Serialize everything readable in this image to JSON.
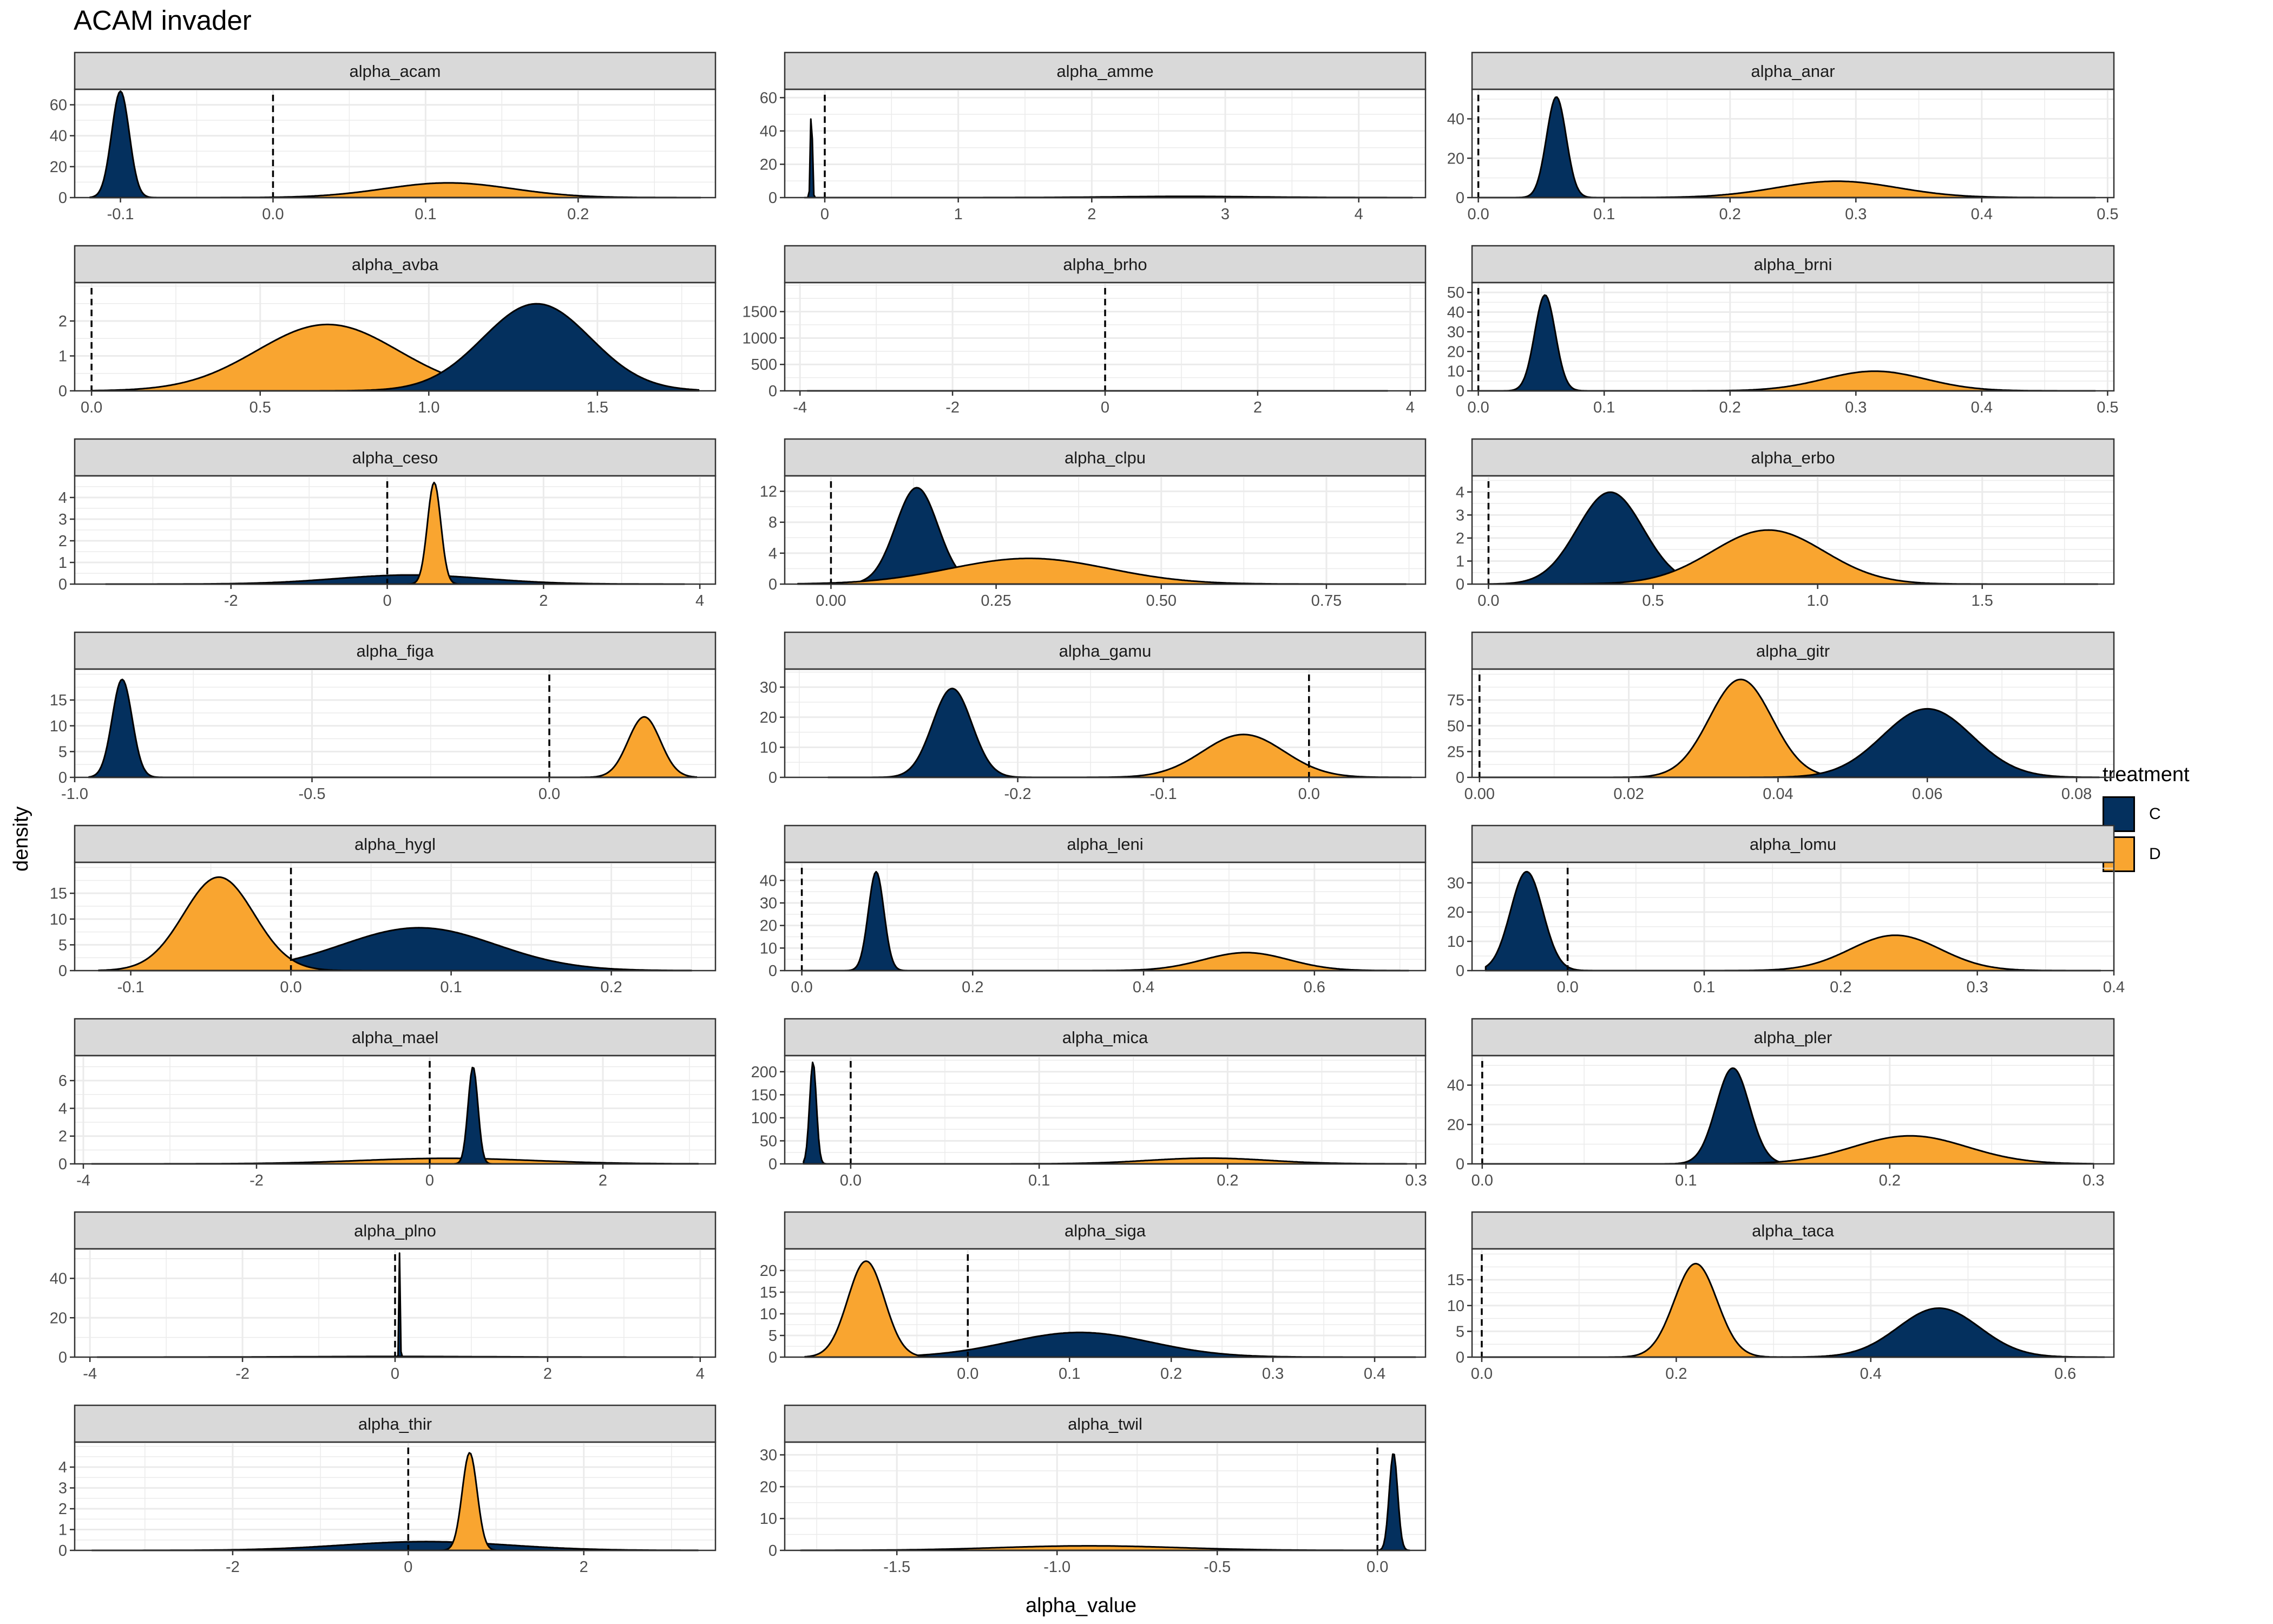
{
  "title": "ACAM invader",
  "xlabel": "alpha_value",
  "ylabel": "density",
  "legend": {
    "title": "treatment",
    "items": [
      {
        "label": "C",
        "color": "#04305e"
      },
      {
        "label": "D",
        "color": "#f9a530"
      }
    ]
  },
  "colors": {
    "C": "#04305e",
    "D": "#f9a530",
    "strip": "#d9d9d9",
    "grid": "#ebebeb"
  },
  "chart_data": [
    {
      "type": "area",
      "title": "alpha_acam",
      "xlim": [
        -0.13,
        0.29
      ],
      "ylim": [
        0,
        70
      ],
      "xticks": [
        -0.1,
        0.0,
        0.1,
        0.2
      ],
      "xtick_labels": [
        "-0.1",
        "0.0",
        "0.1",
        "0.2"
      ],
      "yticks": [
        0,
        20,
        40,
        60
      ],
      "vline": 0,
      "series": [
        {
          "treatment": "C",
          "mean": -0.1,
          "sd": 0.0058,
          "range": [
            -0.12,
            0.28
          ]
        },
        {
          "treatment": "D",
          "mean": 0.115,
          "sd": 0.042,
          "range": [
            -0.12,
            0.28
          ]
        }
      ]
    },
    {
      "type": "area",
      "title": "alpha_amme",
      "xlim": [
        -0.3,
        4.5
      ],
      "ylim": [
        0,
        65
      ],
      "xticks": [
        0,
        1,
        2,
        3,
        4
      ],
      "xtick_labels": [
        "0",
        "1",
        "2",
        "3",
        "4"
      ],
      "yticks": [
        0,
        20,
        40,
        60
      ],
      "vline": 0,
      "series": [
        {
          "treatment": "C",
          "mean": -0.1,
          "sd": 0.0068,
          "range": [
            -0.15,
            4.4
          ]
        },
        {
          "treatment": "D",
          "mean": 2.7,
          "sd": 0.55,
          "range": [
            -0.15,
            4.4
          ]
        }
      ]
    },
    {
      "type": "area",
      "title": "alpha_anar",
      "xlim": [
        -0.005,
        0.505
      ],
      "ylim": [
        0,
        55
      ],
      "xticks": [
        0.0,
        0.1,
        0.2,
        0.3,
        0.4,
        0.5
      ],
      "xtick_labels": [
        "0.0",
        "0.1",
        "0.2",
        "0.3",
        "0.4",
        "0.5"
      ],
      "yticks": [
        0,
        20,
        40
      ],
      "vline": 0,
      "series": [
        {
          "treatment": "C",
          "mean": 0.062,
          "sd": 0.0078,
          "range": [
            0.0,
            0.49
          ]
        },
        {
          "treatment": "D",
          "mean": 0.285,
          "sd": 0.048,
          "range": [
            0.0,
            0.49
          ]
        }
      ]
    },
    {
      "type": "area",
      "title": "alpha_avba",
      "xlim": [
        -0.05,
        1.85
      ],
      "ylim": [
        0,
        3.1
      ],
      "xticks": [
        0.0,
        0.5,
        1.0,
        1.5
      ],
      "xtick_labels": [
        "0.0",
        "0.5",
        "1.0",
        "1.5"
      ],
      "yticks": [
        0,
        1,
        2
      ],
      "vline": 0,
      "series": [
        {
          "treatment": "D",
          "mean": 0.7,
          "sd": 0.21,
          "range": [
            0.0,
            1.8
          ]
        },
        {
          "treatment": "C",
          "mean": 1.32,
          "sd": 0.16,
          "range": [
            0.0,
            1.8
          ]
        }
      ]
    },
    {
      "type": "area",
      "title": "alpha_brho",
      "xlim": [
        -4.2,
        4.2
      ],
      "ylim": [
        0,
        2050
      ],
      "xticks": [
        -4,
        -2,
        0,
        2,
        4
      ],
      "xtick_labels": [
        "-4",
        "-2",
        "0",
        "2",
        "4"
      ],
      "yticks": [
        0,
        500,
        1000,
        1500
      ],
      "vline": 0,
      "series": [
        {
          "treatment": "C",
          "mean": 0.0,
          "sd": 0.0002,
          "range": [
            -3.9,
            3.7
          ]
        },
        {
          "treatment": "D",
          "mean": 0.0,
          "sd": 1.2,
          "range": [
            -3.9,
            3.7
          ]
        }
      ]
    },
    {
      "type": "area",
      "title": "alpha_brni",
      "xlim": [
        -0.005,
        0.505
      ],
      "ylim": [
        0,
        55
      ],
      "xticks": [
        0.0,
        0.1,
        0.2,
        0.3,
        0.4,
        0.5
      ],
      "xtick_labels": [
        "0.0",
        "0.1",
        "0.2",
        "0.3",
        "0.4",
        "0.5"
      ],
      "yticks": [
        0,
        10,
        20,
        30,
        40,
        50
      ],
      "vline": 0,
      "series": [
        {
          "treatment": "C",
          "mean": 0.053,
          "sd": 0.0082,
          "range": [
            0.0,
            0.49
          ]
        },
        {
          "treatment": "D",
          "mean": 0.315,
          "sd": 0.04,
          "range": [
            0.0,
            0.49
          ]
        }
      ]
    },
    {
      "type": "area",
      "title": "alpha_ceso",
      "xlim": [
        -4.0,
        4.2
      ],
      "ylim": [
        0,
        5
      ],
      "xticks": [
        -2,
        0,
        2,
        4
      ],
      "xtick_labels": [
        "-2",
        "0",
        "2",
        "4"
      ],
      "yticks": [
        0,
        1,
        2,
        3,
        4
      ],
      "vline": 0,
      "series": [
        {
          "treatment": "C",
          "mean": 0.3,
          "sd": 0.95,
          "range": [
            -3.6,
            3.8
          ]
        },
        {
          "treatment": "D",
          "mean": 0.6,
          "sd": 0.085,
          "range": [
            -3.6,
            3.8
          ]
        }
      ]
    },
    {
      "type": "area",
      "title": "alpha_clpu",
      "xlim": [
        -0.07,
        0.9
      ],
      "ylim": [
        0,
        14
      ],
      "xticks": [
        0.0,
        0.25,
        0.5,
        0.75
      ],
      "xtick_labels": [
        "0.00",
        "0.25",
        "0.50",
        "0.75"
      ],
      "yticks": [
        0,
        4,
        8,
        12
      ],
      "vline": 0,
      "series": [
        {
          "treatment": "C",
          "mean": 0.13,
          "sd": 0.032,
          "range": [
            -0.05,
            0.87
          ]
        },
        {
          "treatment": "D",
          "mean": 0.3,
          "sd": 0.12,
          "range": [
            -0.05,
            0.87
          ]
        }
      ]
    },
    {
      "type": "area",
      "title": "alpha_erbo",
      "xlim": [
        -0.05,
        1.9
      ],
      "ylim": [
        0,
        4.7
      ],
      "xticks": [
        0.0,
        0.5,
        1.0,
        1.5
      ],
      "xtick_labels": [
        "0.0",
        "0.5",
        "1.0",
        "1.5"
      ],
      "yticks": [
        0,
        1,
        2,
        3,
        4
      ],
      "vline": 0,
      "series": [
        {
          "treatment": "C",
          "mean": 0.37,
          "sd": 0.1,
          "range": [
            0.0,
            1.85
          ]
        },
        {
          "treatment": "D",
          "mean": 0.85,
          "sd": 0.17,
          "range": [
            0.0,
            1.85
          ]
        }
      ]
    },
    {
      "type": "area",
      "title": "alpha_figa",
      "xlim": [
        -1.0,
        0.35
      ],
      "ylim": [
        0,
        21
      ],
      "xticks": [
        -1.0,
        -0.5,
        0.0
      ],
      "xtick_labels": [
        "-1.0",
        "-0.5",
        "0.0"
      ],
      "yticks": [
        0,
        5,
        10,
        15
      ],
      "vline": 0,
      "series": [
        {
          "treatment": "C",
          "mean": -0.9,
          "sd": 0.021,
          "range": [
            -0.97,
            0.31
          ]
        },
        {
          "treatment": "D",
          "mean": 0.2,
          "sd": 0.034,
          "range": [
            -0.97,
            0.31
          ]
        }
      ]
    },
    {
      "type": "area",
      "title": "alpha_gamu",
      "xlim": [
        -0.36,
        0.08
      ],
      "ylim": [
        0,
        36
      ],
      "xticks": [
        -0.2,
        -0.1,
        0.0
      ],
      "xtick_labels": [
        "-0.2",
        "-0.1",
        "0.0"
      ],
      "yticks": [
        0,
        10,
        20,
        30
      ],
      "vline": 0,
      "series": [
        {
          "treatment": "C",
          "mean": -0.245,
          "sd": 0.0135,
          "range": [
            -0.33,
            0.07
          ]
        },
        {
          "treatment": "D",
          "mean": -0.045,
          "sd": 0.028,
          "range": [
            -0.33,
            0.07
          ]
        }
      ]
    },
    {
      "type": "area",
      "title": "alpha_gitr",
      "xlim": [
        -0.001,
        0.085
      ],
      "ylim": [
        0,
        105
      ],
      "xticks": [
        0.0,
        0.02,
        0.04,
        0.06,
        0.08
      ],
      "xtick_labels": [
        "0.00",
        "0.02",
        "0.04",
        "0.06",
        "0.08"
      ],
      "yticks": [
        0,
        25,
        50,
        75
      ],
      "vline": 0,
      "series": [
        {
          "treatment": "D",
          "mean": 0.035,
          "sd": 0.0042,
          "range": [
            0.0,
            0.083
          ]
        },
        {
          "treatment": "C",
          "mean": 0.06,
          "sd": 0.006,
          "range": [
            0.0,
            0.083
          ]
        }
      ]
    },
    {
      "type": "area",
      "title": "alpha_hygl",
      "xlim": [
        -0.135,
        0.265
      ],
      "ylim": [
        0,
        21
      ],
      "xticks": [
        -0.1,
        0.0,
        0.1,
        0.2
      ],
      "xtick_labels": [
        "-0.1",
        "0.0",
        "0.1",
        "0.2"
      ],
      "yticks": [
        0,
        5,
        10,
        15
      ],
      "vline": 0,
      "series": [
        {
          "treatment": "C",
          "mean": 0.08,
          "sd": 0.048,
          "range": [
            -0.12,
            0.25
          ]
        },
        {
          "treatment": "D",
          "mean": -0.045,
          "sd": 0.022,
          "range": [
            -0.12,
            0.25
          ]
        }
      ]
    },
    {
      "type": "area",
      "title": "alpha_leni",
      "xlim": [
        -0.02,
        0.73
      ],
      "ylim": [
        0,
        48
      ],
      "xticks": [
        0.0,
        0.2,
        0.4,
        0.6
      ],
      "xtick_labels": [
        "0.0",
        "0.2",
        "0.4",
        "0.6"
      ],
      "yticks": [
        0,
        10,
        20,
        30,
        40
      ],
      "vline": 0,
      "series": [
        {
          "treatment": "C",
          "mean": 0.087,
          "sd": 0.0091,
          "range": [
            0.0,
            0.71
          ]
        },
        {
          "treatment": "D",
          "mean": 0.52,
          "sd": 0.05,
          "range": [
            0.0,
            0.71
          ]
        }
      ]
    },
    {
      "type": "area",
      "title": "alpha_lomu",
      "xlim": [
        -0.07,
        0.4
      ],
      "ylim": [
        0,
        37
      ],
      "xticks": [
        0.0,
        0.1,
        0.2,
        0.3,
        0.4
      ],
      "xtick_labels": [
        "0.0",
        "0.1",
        "0.2",
        "0.3",
        "0.4"
      ],
      "yticks": [
        0,
        10,
        20,
        30
      ],
      "vline": 0,
      "series": [
        {
          "treatment": "C",
          "mean": -0.03,
          "sd": 0.0118,
          "range": [
            -0.06,
            0.39
          ]
        },
        {
          "treatment": "D",
          "mean": 0.24,
          "sd": 0.033,
          "range": [
            -0.06,
            0.39
          ]
        }
      ]
    },
    {
      "type": "area",
      "title": "alpha_mael",
      "xlim": [
        -4.1,
        3.3
      ],
      "ylim": [
        0,
        7.8
      ],
      "xticks": [
        -4,
        -2,
        0,
        2
      ],
      "xtick_labels": [
        "-4",
        "-2",
        "0",
        "2"
      ],
      "yticks": [
        0,
        2,
        4,
        6
      ],
      "vline": 0,
      "series": [
        {
          "treatment": "D",
          "mean": 0.2,
          "sd": 1.0,
          "range": [
            -3.9,
            3.1
          ]
        },
        {
          "treatment": "C",
          "mean": 0.5,
          "sd": 0.057,
          "range": [
            -3.9,
            3.1
          ]
        }
      ]
    },
    {
      "type": "area",
      "title": "alpha_mica",
      "xlim": [
        -0.035,
        0.305
      ],
      "ylim": [
        0,
        235
      ],
      "xticks": [
        0.0,
        0.1,
        0.2,
        0.3
      ],
      "xtick_labels": [
        "0.0",
        "0.1",
        "0.2",
        "0.3"
      ],
      "yticks": [
        0,
        50,
        100,
        150,
        200
      ],
      "vline": 0,
      "series": [
        {
          "treatment": "C",
          "mean": -0.02,
          "sd": 0.0018,
          "range": [
            -0.025,
            0.295
          ]
        },
        {
          "treatment": "D",
          "mean": 0.19,
          "sd": 0.032,
          "range": [
            -0.025,
            0.295
          ]
        }
      ]
    },
    {
      "type": "area",
      "title": "alpha_pler",
      "xlim": [
        -0.005,
        0.31
      ],
      "ylim": [
        0,
        55
      ],
      "xticks": [
        0.0,
        0.1,
        0.2,
        0.3
      ],
      "xtick_labels": [
        "0.0",
        "0.1",
        "0.2",
        "0.3"
      ],
      "yticks": [
        0,
        20,
        40
      ],
      "vline": 0,
      "series": [
        {
          "treatment": "C",
          "mean": 0.123,
          "sd": 0.0082,
          "range": [
            0.0,
            0.3
          ]
        },
        {
          "treatment": "D",
          "mean": 0.21,
          "sd": 0.028,
          "range": [
            0.0,
            0.3
          ]
        }
      ]
    },
    {
      "type": "area",
      "title": "alpha_plno",
      "xlim": [
        -4.2,
        4.2
      ],
      "ylim": [
        0,
        55
      ],
      "xticks": [
        -4,
        -2,
        0,
        2,
        4
      ],
      "xtick_labels": [
        "-4",
        "-2",
        "0",
        "2",
        "4"
      ],
      "yticks": [
        0,
        20,
        40
      ],
      "vline": 0,
      "series": [
        {
          "treatment": "C",
          "mean": 0.06,
          "sd": 0.0074,
          "range": [
            -3.9,
            3.9
          ]
        },
        {
          "treatment": "D",
          "mean": 0.0,
          "sd": 1.2,
          "range": [
            -3.9,
            3.9
          ]
        }
      ]
    },
    {
      "type": "area",
      "title": "alpha_siga",
      "xlim": [
        -0.18,
        0.45
      ],
      "ylim": [
        0,
        25
      ],
      "xticks": [
        0.0,
        0.1,
        0.2,
        0.3,
        0.4
      ],
      "xtick_labels": [
        "0.0",
        "0.1",
        "0.2",
        "0.3",
        "0.4"
      ],
      "yticks": [
        0,
        5,
        10,
        15,
        20
      ],
      "vline": 0,
      "series": [
        {
          "treatment": "C",
          "mean": 0.11,
          "sd": 0.07,
          "range": [
            -0.16,
            0.44
          ]
        },
        {
          "treatment": "D",
          "mean": -0.1,
          "sd": 0.018,
          "range": [
            -0.16,
            0.44
          ]
        }
      ]
    },
    {
      "type": "area",
      "title": "alpha_taca",
      "xlim": [
        -0.01,
        0.65
      ],
      "ylim": [
        0,
        21
      ],
      "xticks": [
        0.0,
        0.2,
        0.4,
        0.6
      ],
      "xtick_labels": [
        "0.0",
        "0.2",
        "0.4",
        "0.6"
      ],
      "yticks": [
        0,
        5,
        10,
        15
      ],
      "vline": 0,
      "series": [
        {
          "treatment": "D",
          "mean": 0.22,
          "sd": 0.022,
          "range": [
            0.0,
            0.64
          ]
        },
        {
          "treatment": "C",
          "mean": 0.47,
          "sd": 0.042,
          "range": [
            0.0,
            0.64
          ]
        }
      ]
    },
    {
      "type": "area",
      "title": "alpha_thir",
      "xlim": [
        -3.8,
        3.5
      ],
      "ylim": [
        0,
        5.2
      ],
      "xticks": [
        -2,
        0,
        2
      ],
      "xtick_labels": [
        "-2",
        "0",
        "2"
      ],
      "yticks": [
        0,
        1,
        2,
        3,
        4
      ],
      "vline": 0,
      "series": [
        {
          "treatment": "C",
          "mean": 0.2,
          "sd": 0.95,
          "range": [
            -3.6,
            3.3
          ]
        },
        {
          "treatment": "D",
          "mean": 0.7,
          "sd": 0.085,
          "range": [
            -3.6,
            3.3
          ]
        }
      ]
    },
    {
      "type": "area",
      "title": "alpha_twil",
      "xlim": [
        -1.85,
        0.15
      ],
      "ylim": [
        0,
        34
      ],
      "xticks": [
        -1.5,
        -1.0,
        -0.5,
        0.0
      ],
      "xtick_labels": [
        "-1.5",
        "-1.0",
        "-0.5",
        "0.0"
      ],
      "yticks": [
        0,
        10,
        20,
        30
      ],
      "vline": 0,
      "series": [
        {
          "treatment": "D",
          "mean": -0.9,
          "sd": 0.28,
          "range": [
            -1.8,
            0.1
          ]
        },
        {
          "treatment": "C",
          "mean": 0.05,
          "sd": 0.013,
          "range": [
            -1.8,
            0.1
          ]
        }
      ]
    }
  ]
}
